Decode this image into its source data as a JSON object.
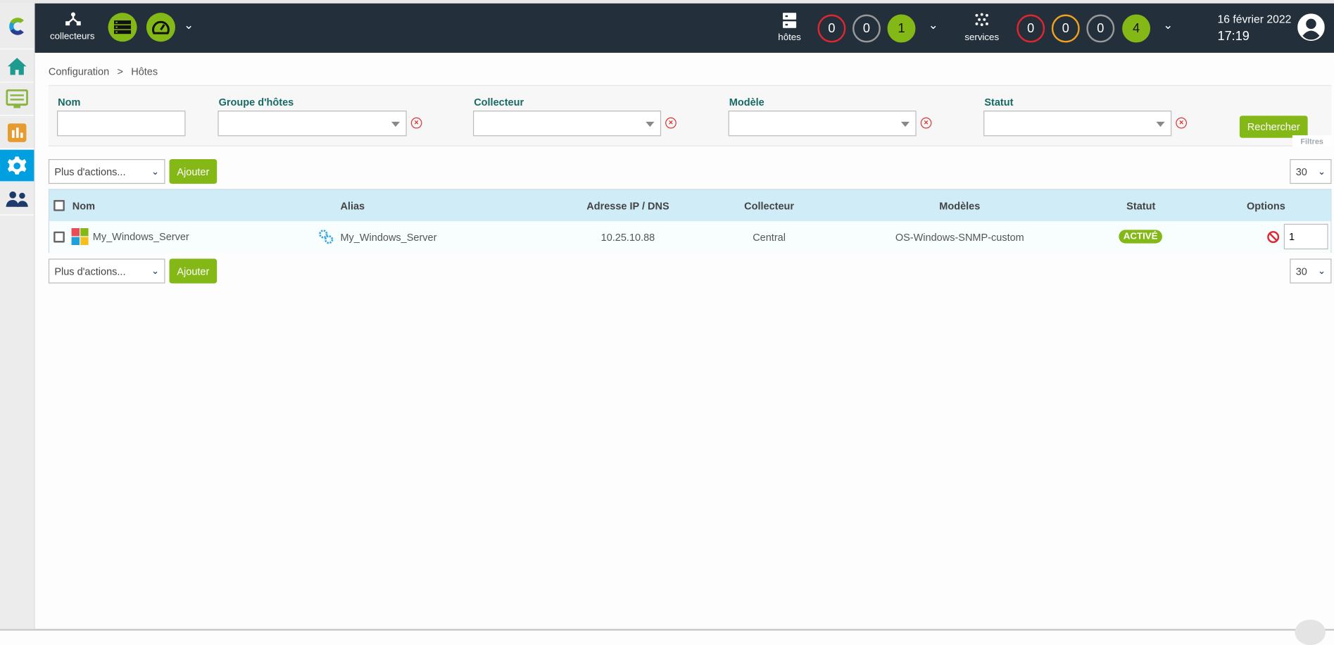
{
  "topbar": {
    "pollers_label": "collecteurs",
    "hosts": {
      "label": "hôtes",
      "counts": [
        {
          "value": "0",
          "color": "#e0262f",
          "filled": false
        },
        {
          "value": "0",
          "color": "#999999",
          "filled": false
        },
        {
          "value": "1",
          "color": "#84b817",
          "filled": true
        }
      ]
    },
    "services": {
      "label": "services",
      "counts": [
        {
          "value": "0",
          "color": "#e0262f",
          "filled": false
        },
        {
          "value": "0",
          "color": "#f0a21e",
          "filled": false
        },
        {
          "value": "0",
          "color": "#999999",
          "filled": false
        },
        {
          "value": "4",
          "color": "#84b817",
          "filled": true
        }
      ]
    },
    "date": "16 février 2022",
    "time": "17:19"
  },
  "breadcrumb": {
    "root": "Configuration",
    "separator": ">",
    "current": "Hôtes"
  },
  "filters": {
    "nom": {
      "label": "Nom",
      "value": ""
    },
    "groupe": {
      "label": "Groupe d'hôtes",
      "value": ""
    },
    "collecteur": {
      "label": "Collecteur",
      "value": ""
    },
    "modele": {
      "label": "Modèle",
      "value": ""
    },
    "statut": {
      "label": "Statut",
      "value": ""
    },
    "search_label": "Rechercher",
    "filters_tab": "Filtres"
  },
  "actions": {
    "more_actions": "Plus d'actions...",
    "add": "Ajouter",
    "page_size": "30"
  },
  "table": {
    "headers": {
      "name": "Nom",
      "alias": "Alias",
      "ip": "Adresse IP / DNS",
      "poller": "Collecteur",
      "templates": "Modèles",
      "status": "Statut",
      "options": "Options"
    },
    "rows": [
      {
        "name": "My_Windows_Server",
        "alias": "My_Windows_Server",
        "ip": "10.25.10.88",
        "poller": "Central",
        "templates": "OS-Windows-SNMP-custom",
        "status": "ACTIVÉ",
        "duplicate_count": "1"
      }
    ]
  },
  "colors": {
    "accent": "#84b817",
    "topbar": "#232f3a",
    "active_nav": "#009fdf",
    "header_row": "#d0ecf7",
    "label": "#166a63"
  }
}
